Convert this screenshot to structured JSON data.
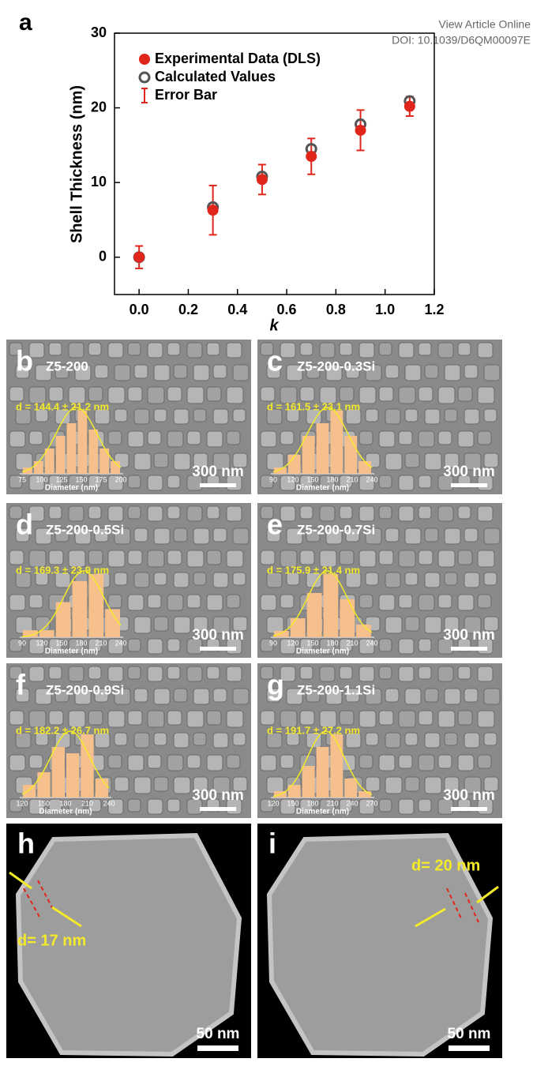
{
  "header": {
    "link": "View Article Online",
    "doi": "DOI: 10.1039/D6QM00097E"
  },
  "chart_data": {
    "type": "scatter",
    "panel_label": "a",
    "x_label": "k",
    "y_label": "Shell Thickness (nm)",
    "x": [
      0,
      0.3,
      0.5,
      0.7,
      0.9,
      1.1
    ],
    "series": [
      {
        "name": "Experimental Data (DLS)",
        "color": "#e0261b",
        "values": [
          0,
          6.3,
          10.4,
          13.5,
          17.0,
          20.2
        ],
        "errors": [
          1.5,
          3.3,
          2.0,
          2.4,
          2.7,
          1.3
        ]
      },
      {
        "name": "Calculated Values",
        "color": "#555555",
        "values": [
          0,
          6.7,
          10.8,
          14.5,
          17.8,
          20.9
        ]
      }
    ],
    "error_legend": "Error Bar",
    "xlim": [
      -0.1,
      1.2
    ],
    "ylim": [
      -5,
      30
    ],
    "xticks": [
      {
        "value": 0,
        "label": "0.0"
      },
      {
        "value": 0.2,
        "label": "0.2"
      },
      {
        "value": 0.4,
        "label": "0.4"
      },
      {
        "value": 0.6,
        "label": "0.6"
      },
      {
        "value": 0.8,
        "label": "0.8"
      },
      {
        "value": 1,
        "label": "1.0"
      },
      {
        "value": 1.2,
        "label": "1.2"
      }
    ],
    "yticks": [
      0,
      10,
      20,
      30
    ]
  },
  "panels": [
    {
      "label": "b",
      "sample": "Z5-200",
      "d_text": "d = 144.4 ± 21.2 nm",
      "ticks": [
        75,
        100,
        125,
        150,
        175,
        200
      ],
      "axis_label": "Diameter (nm)",
      "bars": [
        1,
        2,
        4,
        6,
        8,
        10,
        7,
        4,
        2
      ],
      "scale": "300 nm"
    },
    {
      "label": "c",
      "sample": "Z5-200-0.3Si",
      "d_text": "d = 161.5 ± 23.1 nm",
      "ticks": [
        90,
        120,
        150,
        180,
        210,
        240
      ],
      "axis_label": "Diameter (nm)",
      "bars": [
        1,
        3,
        6,
        8,
        10,
        6,
        2
      ],
      "scale": "300 nm"
    },
    {
      "label": "d",
      "sample": "Z5-200-0.5Si",
      "d_text": "d = 169.3 ± 23.9 nm",
      "ticks": [
        90,
        120,
        150,
        180,
        210,
        240
      ],
      "axis_label": "Diameter (nm)",
      "bars": [
        1,
        1,
        5,
        8,
        9,
        4
      ],
      "scale": "300 nm"
    },
    {
      "label": "e",
      "sample": "Z5-200-0.7Si",
      "d_text": "d = 175.9 ± 21.4 nm",
      "ticks": [
        90,
        120,
        150,
        180,
        210,
        240
      ],
      "axis_label": "Diameter (nm)",
      "bars": [
        1,
        3,
        7,
        10,
        6,
        2
      ],
      "scale": "300 nm"
    },
    {
      "label": "f",
      "sample": "Z5-200-0.9Si",
      "d_text": "d = 182.2 ± 26.7 nm",
      "ticks": [
        120,
        150,
        180,
        210,
        240
      ],
      "axis_label": "Diameter (nm)",
      "bars": [
        2,
        4,
        8,
        7,
        10,
        3
      ],
      "scale": "300 nm"
    },
    {
      "label": "g",
      "sample": "Z5-200-1.1Si",
      "d_text": "d = 191.7 ± 27.2 nm",
      "ticks": [
        120,
        150,
        180,
        210,
        240,
        270
      ],
      "axis_label": "Diameter (nm)",
      "bars": [
        1,
        2,
        5,
        8,
        10,
        3,
        1
      ],
      "scale": "300 nm"
    }
  ],
  "tem": [
    {
      "label": "h",
      "d_text": "d= 17 nm",
      "scale": "50 nm"
    },
    {
      "label": "i",
      "d_text": "d= 20 nm",
      "scale": "50 nm"
    }
  ]
}
